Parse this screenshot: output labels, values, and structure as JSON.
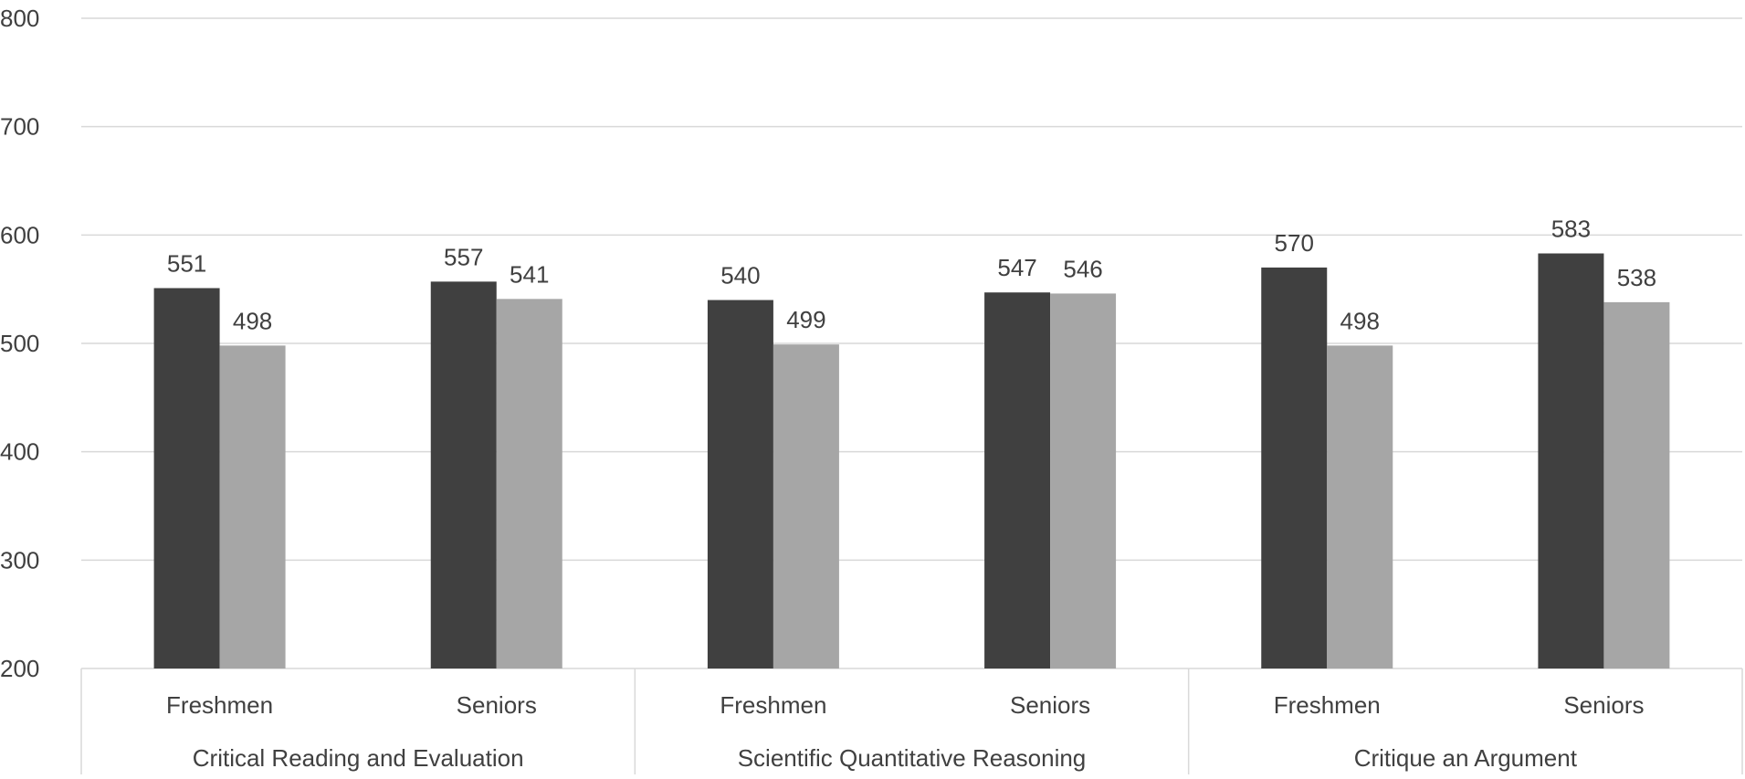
{
  "chart_data": {
    "type": "bar",
    "title": "",
    "xlabel": "",
    "ylabel": "",
    "ylim": [
      200,
      800
    ],
    "yticks": [
      200,
      300,
      400,
      500,
      600,
      700,
      800
    ],
    "grid": true,
    "legend": "none",
    "groups": [
      {
        "label": "Critical Reading and Evaluation",
        "categories": [
          "Freshmen",
          "Seniors"
        ],
        "series": [
          {
            "values": [
              551,
              557
            ]
          },
          {
            "values": [
              498,
              541
            ]
          }
        ]
      },
      {
        "label": "Scientific Quantitative Reasoning",
        "categories": [
          "Freshmen",
          "Seniors"
        ],
        "series": [
          {
            "values": [
              540,
              547
            ]
          },
          {
            "values": [
              499,
              546
            ]
          }
        ]
      },
      {
        "label": "Critique an Argument",
        "categories": [
          "Freshmen",
          "Seniors"
        ],
        "series": [
          {
            "values": [
              570,
              583
            ]
          },
          {
            "values": [
              498,
              538
            ]
          }
        ]
      }
    ],
    "colors": [
      "#404040",
      "#a6a6a6"
    ],
    "gridColor": "#d9d9d9",
    "textColor": "#404040"
  }
}
